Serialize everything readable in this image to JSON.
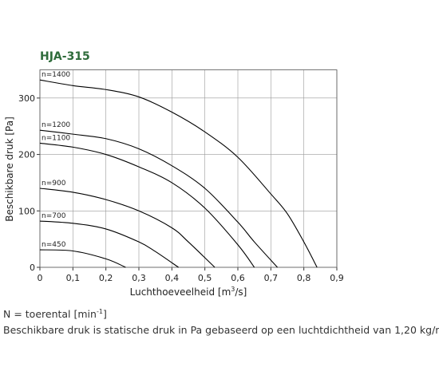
{
  "chart_data": {
    "type": "line",
    "title": "HJA-315",
    "xlabel": [
      "Luchthoeveelheid [m",
      "3",
      "/s]"
    ],
    "ylabel": "Beschikbare druk [Pa]",
    "xlim": [
      0,
      0.9
    ],
    "ylim": [
      0,
      350
    ],
    "xticks": [
      0,
      {
        "value": 0.1,
        "label": "0,1"
      },
      {
        "value": 0.2,
        "label": "0,2"
      },
      {
        "value": 0.3,
        "label": "0,3"
      },
      {
        "value": 0.4,
        "label": "0,4"
      },
      {
        "value": 0.5,
        "label": "0,5"
      },
      {
        "value": 0.6,
        "label": "0,6"
      },
      {
        "value": 0.7,
        "label": "0,7"
      },
      {
        "value": 0.8,
        "label": "0,8"
      },
      {
        "value": 0.9,
        "label": "0,9"
      }
    ],
    "yticks": [
      0,
      100,
      200,
      300
    ],
    "grid": true,
    "series": [
      {
        "name": "n=1400",
        "color": "#000000",
        "x": [
          0,
          0.1,
          0.2,
          0.3,
          0.4,
          0.5,
          0.6,
          0.7,
          0.75,
          0.8,
          0.84
        ],
        "values": [
          332,
          322,
          315,
          302,
          275,
          240,
          195,
          130,
          95,
          45,
          0
        ]
      },
      {
        "name": "n=1200",
        "color": "#000000",
        "x": [
          0,
          0.1,
          0.2,
          0.3,
          0.4,
          0.5,
          0.6,
          0.65,
          0.72
        ],
        "values": [
          243,
          236,
          228,
          210,
          180,
          140,
          80,
          45,
          0
        ]
      },
      {
        "name": "n=1100",
        "color": "#000000",
        "x": [
          0,
          0.1,
          0.2,
          0.3,
          0.4,
          0.5,
          0.6,
          0.65
        ],
        "values": [
          220,
          213,
          200,
          178,
          150,
          105,
          40,
          0
        ]
      },
      {
        "name": "n=900",
        "color": "#000000",
        "x": [
          0,
          0.1,
          0.2,
          0.3,
          0.4,
          0.45,
          0.53
        ],
        "values": [
          140,
          133,
          120,
          100,
          70,
          45,
          0
        ]
      },
      {
        "name": "n=700",
        "color": "#000000",
        "x": [
          0,
          0.1,
          0.2,
          0.3,
          0.35,
          0.42
        ],
        "values": [
          82,
          78,
          68,
          45,
          28,
          0
        ]
      },
      {
        "name": "n=450",
        "color": "#000000",
        "x": [
          0,
          0.1,
          0.2,
          0.26
        ],
        "values": [
          31,
          29,
          15,
          0
        ]
      }
    ]
  },
  "notes": [
    [
      "N = toerental [min",
      "-1",
      "]"
    ],
    [
      "Beschikbare druk is statische druk in Pa gebaseerd op een luchtdichtheid van 1,20 kg/m",
      "3",
      "."
    ]
  ]
}
